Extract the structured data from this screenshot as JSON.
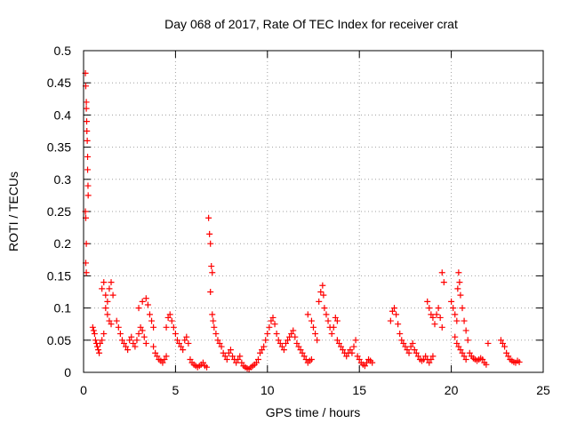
{
  "chart_data": {
    "type": "scatter",
    "title": "Day 068 of 2017, Rate Of TEC Index for receiver crat",
    "xlabel": "GPS time / hours",
    "ylabel": "ROTI / TECUs",
    "xlim": [
      0,
      25
    ],
    "ylim": [
      0,
      0.5
    ],
    "xticks": [
      0,
      5,
      10,
      15,
      20,
      25
    ],
    "yticks": [
      0,
      0.05,
      0.1,
      0.15,
      0.2,
      0.25,
      0.3,
      0.35,
      0.4,
      0.45,
      0.5
    ],
    "xtick_labels": [
      "0",
      "5",
      "10",
      "15",
      "20",
      "25"
    ],
    "ytick_labels": [
      "0",
      "0.05",
      "0.1",
      "0.15",
      "0.2",
      "0.25",
      "0.3",
      "0.35",
      "0.4",
      "0.45",
      "0.5"
    ],
    "grid": true,
    "marker": "+",
    "color": "#ff0000",
    "series": [
      {
        "name": "ROTI",
        "points": [
          [
            0.1,
            0.465
          ],
          [
            0.12,
            0.445
          ],
          [
            0.15,
            0.42
          ],
          [
            0.15,
            0.41
          ],
          [
            0.17,
            0.39
          ],
          [
            0.18,
            0.375
          ],
          [
            0.2,
            0.36
          ],
          [
            0.22,
            0.335
          ],
          [
            0.22,
            0.315
          ],
          [
            0.24,
            0.29
          ],
          [
            0.25,
            0.275
          ],
          [
            0.1,
            0.25
          ],
          [
            0.12,
            0.24
          ],
          [
            0.15,
            0.2
          ],
          [
            0.12,
            0.17
          ],
          [
            0.15,
            0.155
          ],
          [
            0.5,
            0.07
          ],
          [
            0.55,
            0.065
          ],
          [
            0.6,
            0.06
          ],
          [
            0.65,
            0.05
          ],
          [
            0.7,
            0.045
          ],
          [
            0.75,
            0.04
          ],
          [
            0.8,
            0.035
          ],
          [
            0.85,
            0.03
          ],
          [
            0.9,
            0.045
          ],
          [
            1.0,
            0.05
          ],
          [
            1.1,
            0.06
          ],
          [
            1.0,
            0.13
          ],
          [
            1.1,
            0.14
          ],
          [
            1.2,
            0.12
          ],
          [
            1.3,
            0.11
          ],
          [
            1.4,
            0.13
          ],
          [
            1.5,
            0.14
          ],
          [
            1.6,
            0.12
          ],
          [
            1.2,
            0.1
          ],
          [
            1.3,
            0.09
          ],
          [
            1.4,
            0.08
          ],
          [
            1.5,
            0.075
          ],
          [
            1.8,
            0.08
          ],
          [
            1.9,
            0.07
          ],
          [
            2.0,
            0.06
          ],
          [
            2.1,
            0.05
          ],
          [
            2.2,
            0.045
          ],
          [
            2.3,
            0.04
          ],
          [
            2.4,
            0.035
          ],
          [
            2.5,
            0.05
          ],
          [
            2.6,
            0.055
          ],
          [
            2.7,
            0.045
          ],
          [
            2.8,
            0.04
          ],
          [
            2.9,
            0.05
          ],
          [
            3.0,
            0.06
          ],
          [
            3.1,
            0.07
          ],
          [
            3.2,
            0.065
          ],
          [
            3.3,
            0.055
          ],
          [
            3.4,
            0.045
          ],
          [
            3.0,
            0.1
          ],
          [
            3.2,
            0.11
          ],
          [
            3.4,
            0.115
          ],
          [
            3.5,
            0.105
          ],
          [
            3.6,
            0.09
          ],
          [
            3.7,
            0.08
          ],
          [
            3.8,
            0.07
          ],
          [
            3.8,
            0.04
          ],
          [
            3.9,
            0.03
          ],
          [
            4.0,
            0.025
          ],
          [
            4.1,
            0.02
          ],
          [
            4.2,
            0.018
          ],
          [
            4.3,
            0.015
          ],
          [
            4.4,
            0.02
          ],
          [
            4.5,
            0.025
          ],
          [
            4.5,
            0.07
          ],
          [
            4.6,
            0.085
          ],
          [
            4.7,
            0.09
          ],
          [
            4.8,
            0.08
          ],
          [
            4.9,
            0.07
          ],
          [
            5.0,
            0.06
          ],
          [
            5.1,
            0.05
          ],
          [
            5.2,
            0.045
          ],
          [
            5.3,
            0.04
          ],
          [
            5.4,
            0.035
          ],
          [
            5.5,
            0.05
          ],
          [
            5.6,
            0.055
          ],
          [
            5.7,
            0.045
          ],
          [
            5.8,
            0.02
          ],
          [
            5.9,
            0.015
          ],
          [
            6.0,
            0.012
          ],
          [
            6.1,
            0.01
          ],
          [
            6.2,
            0.008
          ],
          [
            6.3,
            0.01
          ],
          [
            6.4,
            0.012
          ],
          [
            6.5,
            0.015
          ],
          [
            6.6,
            0.01
          ],
          [
            6.7,
            0.008
          ],
          [
            6.8,
            0.24
          ],
          [
            6.85,
            0.215
          ],
          [
            6.9,
            0.2
          ],
          [
            6.95,
            0.165
          ],
          [
            7.0,
            0.155
          ],
          [
            6.9,
            0.125
          ],
          [
            7.0,
            0.09
          ],
          [
            7.05,
            0.08
          ],
          [
            7.1,
            0.07
          ],
          [
            7.2,
            0.06
          ],
          [
            7.3,
            0.05
          ],
          [
            7.4,
            0.045
          ],
          [
            7.5,
            0.04
          ],
          [
            7.6,
            0.03
          ],
          [
            7.7,
            0.025
          ],
          [
            7.8,
            0.02
          ],
          [
            7.9,
            0.03
          ],
          [
            8.0,
            0.035
          ],
          [
            8.1,
            0.025
          ],
          [
            8.2,
            0.02
          ],
          [
            8.3,
            0.015
          ],
          [
            8.4,
            0.02
          ],
          [
            8.5,
            0.025
          ],
          [
            8.6,
            0.015
          ],
          [
            8.7,
            0.01
          ],
          [
            8.8,
            0.008
          ],
          [
            8.9,
            0.006
          ],
          [
            9.0,
            0.005
          ],
          [
            9.1,
            0.008
          ],
          [
            9.2,
            0.01
          ],
          [
            9.3,
            0.012
          ],
          [
            9.4,
            0.015
          ],
          [
            9.5,
            0.02
          ],
          [
            9.6,
            0.03
          ],
          [
            9.7,
            0.035
          ],
          [
            9.8,
            0.04
          ],
          [
            9.9,
            0.05
          ],
          [
            10.0,
            0.06
          ],
          [
            10.1,
            0.07
          ],
          [
            10.2,
            0.08
          ],
          [
            10.3,
            0.085
          ],
          [
            10.4,
            0.075
          ],
          [
            10.5,
            0.06
          ],
          [
            10.6,
            0.05
          ],
          [
            10.7,
            0.045
          ],
          [
            10.8,
            0.04
          ],
          [
            10.9,
            0.035
          ],
          [
            11.0,
            0.045
          ],
          [
            11.1,
            0.05
          ],
          [
            11.2,
            0.055
          ],
          [
            11.3,
            0.06
          ],
          [
            11.4,
            0.065
          ],
          [
            11.5,
            0.055
          ],
          [
            11.6,
            0.045
          ],
          [
            11.7,
            0.04
          ],
          [
            11.8,
            0.035
          ],
          [
            11.9,
            0.03
          ],
          [
            12.0,
            0.025
          ],
          [
            12.1,
            0.02
          ],
          [
            12.2,
            0.015
          ],
          [
            12.3,
            0.018
          ],
          [
            12.4,
            0.02
          ],
          [
            12.2,
            0.09
          ],
          [
            12.4,
            0.08
          ],
          [
            12.5,
            0.07
          ],
          [
            12.6,
            0.06
          ],
          [
            12.7,
            0.05
          ],
          [
            12.8,
            0.11
          ],
          [
            12.9,
            0.125
          ],
          [
            13.0,
            0.135
          ],
          [
            13.05,
            0.12
          ],
          [
            13.1,
            0.1
          ],
          [
            13.2,
            0.09
          ],
          [
            13.3,
            0.08
          ],
          [
            13.4,
            0.07
          ],
          [
            13.5,
            0.06
          ],
          [
            13.6,
            0.07
          ],
          [
            13.7,
            0.085
          ],
          [
            13.8,
            0.08
          ],
          [
            13.8,
            0.05
          ],
          [
            13.9,
            0.045
          ],
          [
            14.0,
            0.04
          ],
          [
            14.1,
            0.035
          ],
          [
            14.2,
            0.03
          ],
          [
            14.3,
            0.025
          ],
          [
            14.4,
            0.03
          ],
          [
            14.5,
            0.035
          ],
          [
            14.6,
            0.03
          ],
          [
            14.7,
            0.04
          ],
          [
            14.8,
            0.05
          ],
          [
            14.9,
            0.025
          ],
          [
            15.0,
            0.02
          ],
          [
            15.1,
            0.015
          ],
          [
            15.2,
            0.012
          ],
          [
            15.3,
            0.01
          ],
          [
            15.4,
            0.015
          ],
          [
            15.5,
            0.02
          ],
          [
            15.6,
            0.018
          ],
          [
            15.7,
            0.015
          ],
          [
            16.7,
            0.08
          ],
          [
            16.8,
            0.095
          ],
          [
            16.9,
            0.1
          ],
          [
            17.0,
            0.09
          ],
          [
            17.1,
            0.075
          ],
          [
            17.2,
            0.06
          ],
          [
            17.3,
            0.05
          ],
          [
            17.4,
            0.045
          ],
          [
            17.5,
            0.04
          ],
          [
            17.6,
            0.035
          ],
          [
            17.7,
            0.03
          ],
          [
            17.8,
            0.04
          ],
          [
            17.9,
            0.045
          ],
          [
            18.0,
            0.035
          ],
          [
            18.1,
            0.03
          ],
          [
            18.2,
            0.025
          ],
          [
            18.3,
            0.02
          ],
          [
            18.4,
            0.018
          ],
          [
            18.5,
            0.02
          ],
          [
            18.6,
            0.025
          ],
          [
            18.7,
            0.02
          ],
          [
            18.8,
            0.015
          ],
          [
            18.9,
            0.02
          ],
          [
            19.0,
            0.025
          ],
          [
            18.7,
            0.11
          ],
          [
            18.8,
            0.1
          ],
          [
            18.9,
            0.09
          ],
          [
            19.0,
            0.085
          ],
          [
            19.1,
            0.075
          ],
          [
            19.2,
            0.09
          ],
          [
            19.3,
            0.1
          ],
          [
            19.4,
            0.085
          ],
          [
            19.5,
            0.07
          ],
          [
            19.5,
            0.155
          ],
          [
            19.6,
            0.14
          ],
          [
            20.0,
            0.11
          ],
          [
            20.1,
            0.1
          ],
          [
            20.2,
            0.09
          ],
          [
            20.3,
            0.08
          ],
          [
            20.35,
            0.13
          ],
          [
            20.4,
            0.155
          ],
          [
            20.45,
            0.14
          ],
          [
            20.5,
            0.12
          ],
          [
            20.6,
            0.1
          ],
          [
            20.7,
            0.08
          ],
          [
            20.8,
            0.065
          ],
          [
            20.9,
            0.05
          ],
          [
            20.2,
            0.055
          ],
          [
            20.3,
            0.045
          ],
          [
            20.4,
            0.04
          ],
          [
            20.5,
            0.035
          ],
          [
            20.6,
            0.03
          ],
          [
            20.7,
            0.025
          ],
          [
            20.8,
            0.02
          ],
          [
            21.0,
            0.03
          ],
          [
            21.1,
            0.025
          ],
          [
            21.2,
            0.022
          ],
          [
            21.3,
            0.02
          ],
          [
            21.4,
            0.018
          ],
          [
            21.5,
            0.02
          ],
          [
            21.6,
            0.022
          ],
          [
            21.7,
            0.02
          ],
          [
            21.8,
            0.015
          ],
          [
            21.9,
            0.012
          ],
          [
            22.0,
            0.045
          ],
          [
            22.7,
            0.05
          ],
          [
            22.8,
            0.045
          ],
          [
            22.9,
            0.04
          ],
          [
            23.0,
            0.03
          ],
          [
            23.1,
            0.025
          ],
          [
            23.2,
            0.02
          ],
          [
            23.3,
            0.018
          ],
          [
            23.4,
            0.016
          ],
          [
            23.5,
            0.015
          ],
          [
            23.6,
            0.018
          ],
          [
            23.7,
            0.016
          ]
        ]
      }
    ]
  }
}
